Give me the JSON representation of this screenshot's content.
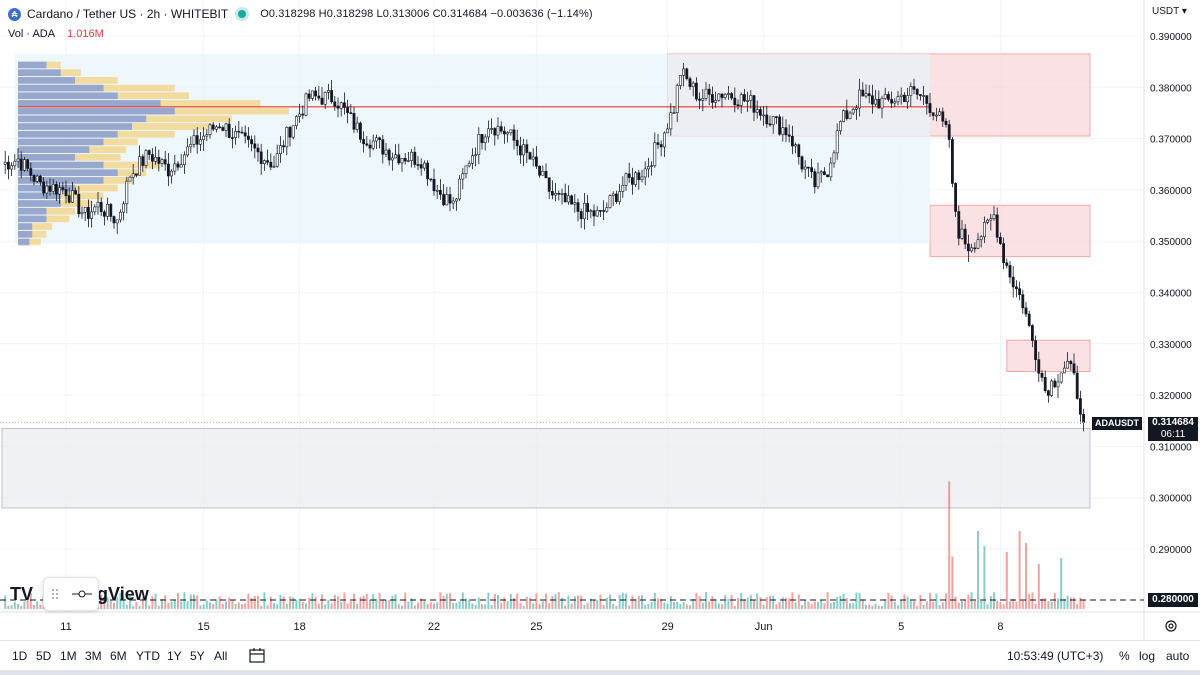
{
  "header": {
    "symbol_title": "Cardano / Tether US · 2h · WHITEBIT",
    "ohlc_text": "O0.318298 H0.318298 L0.313006 C0.314684 −0.003636 (−1.14%)",
    "vol_label": "Vol · ADA",
    "vol_value": "1.016M",
    "currency": "USDT ▾",
    "symbol_icon": "cardano-logo",
    "status_icon": "market-open-dot"
  },
  "price_tags": {
    "symbol": "ADAUSDT",
    "last_price": "0.314684",
    "countdown": "06:11",
    "dashed_price": "0.280000"
  },
  "watermark": {
    "text": "gView",
    "logo": "TV"
  },
  "timeframes": [
    "1D",
    "5D",
    "1M",
    "3M",
    "6M",
    "YTD",
    "1Y",
    "5Y",
    "All"
  ],
  "bottom": {
    "clock": "10:53:49 (UTC+3)",
    "percent": "%",
    "log": "log",
    "auto": "auto"
  },
  "colors": {
    "up": "#26a69a",
    "down": "#ef5350",
    "zone_fill": "#f9d7da",
    "zone_border": "#f28b8b",
    "range_fill": "#e7f3fb",
    "support_fill": "#eceef2",
    "poc_line": "#e53935",
    "profile_blue": "#4d7cf6",
    "profile_yellow": "#f5c451"
  },
  "chart_data": {
    "type": "candlestick",
    "title": "Cardano / Tether US · 2h · WHITEBIT",
    "y_ticks": [
      "0.390000",
      "0.380000",
      "0.370000",
      "0.360000",
      "0.350000",
      "0.340000",
      "0.330000",
      "0.320000",
      "0.310000",
      "0.300000",
      "0.290000"
    ],
    "y_tick_values": [
      0.39,
      0.38,
      0.37,
      0.36,
      0.35,
      0.34,
      0.33,
      0.32,
      0.31,
      0.3,
      0.29
    ],
    "ylim": [
      0.2775,
      0.394
    ],
    "x_ticks": [
      "11",
      "15",
      "18",
      "22",
      "25",
      "29",
      "Jun",
      "5",
      "8"
    ],
    "x_tick_index": [
      20,
      63,
      93,
      135,
      167,
      208,
      238,
      281,
      312
    ],
    "bar_count": 338,
    "poc_price": 0.3762,
    "zones": [
      {
        "type": "resistance",
        "from_index": 208,
        "to_index": 340,
        "top": 0.3865,
        "bottom": 0.3705
      },
      {
        "type": "resistance",
        "from_index": 290,
        "to_index": 340,
        "top": 0.357,
        "bottom": 0.347
      },
      {
        "type": "resistance",
        "from_index": 314,
        "to_index": 340,
        "top": 0.3307,
        "bottom": 0.3246
      },
      {
        "type": "support",
        "from_index": 0,
        "to_index": 340,
        "top": 0.3135,
        "bottom": 0.298
      },
      {
        "type": "range",
        "from_index": 4,
        "to_index": 290,
        "top": 0.3865,
        "bottom": 0.3495
      }
    ],
    "path_keypoints": [
      [
        0,
        0.365
      ],
      [
        5,
        0.366
      ],
      [
        12,
        0.361
      ],
      [
        20,
        0.36
      ],
      [
        26,
        0.355
      ],
      [
        30,
        0.357
      ],
      [
        36,
        0.354
      ],
      [
        40,
        0.363
      ],
      [
        46,
        0.367
      ],
      [
        52,
        0.364
      ],
      [
        60,
        0.369
      ],
      [
        68,
        0.373
      ],
      [
        76,
        0.369
      ],
      [
        85,
        0.365
      ],
      [
        90,
        0.372
      ],
      [
        96,
        0.378
      ],
      [
        104,
        0.378
      ],
      [
        112,
        0.371
      ],
      [
        122,
        0.367
      ],
      [
        131,
        0.366
      ],
      [
        136,
        0.36
      ],
      [
        141,
        0.357
      ],
      [
        146,
        0.366
      ],
      [
        152,
        0.373
      ],
      [
        158,
        0.371
      ],
      [
        165,
        0.366
      ],
      [
        172,
        0.359
      ],
      [
        180,
        0.356
      ],
      [
        187,
        0.355
      ],
      [
        194,
        0.361
      ],
      [
        201,
        0.364
      ],
      [
        206,
        0.37
      ],
      [
        210,
        0.376
      ],
      [
        212,
        0.383
      ],
      [
        218,
        0.378
      ],
      [
        226,
        0.379
      ],
      [
        234,
        0.377
      ],
      [
        240,
        0.374
      ],
      [
        246,
        0.371
      ],
      [
        250,
        0.365
      ],
      [
        254,
        0.361
      ],
      [
        258,
        0.364
      ],
      [
        262,
        0.373
      ],
      [
        268,
        0.378
      ],
      [
        276,
        0.377
      ],
      [
        284,
        0.379
      ],
      [
        288,
        0.378
      ],
      [
        292,
        0.375
      ],
      [
        296,
        0.37
      ],
      [
        297,
        0.36
      ],
      [
        299,
        0.352
      ],
      [
        302,
        0.349
      ],
      [
        307,
        0.352
      ],
      [
        310,
        0.355
      ],
      [
        313,
        0.347
      ],
      [
        316,
        0.342
      ],
      [
        319,
        0.338
      ],
      [
        321,
        0.333
      ],
      [
        324,
        0.326
      ],
      [
        326,
        0.321
      ],
      [
        329,
        0.323
      ],
      [
        331,
        0.325
      ],
      [
        333,
        0.326
      ],
      [
        335,
        0.323
      ],
      [
        337,
        0.318
      ],
      [
        338,
        0.3147
      ]
    ],
    "volume_spikes": [
      [
        296,
        0.85
      ],
      [
        297,
        0.35
      ],
      [
        305,
        0.52
      ],
      [
        307,
        0.42
      ],
      [
        314,
        0.38
      ],
      [
        318,
        0.52
      ],
      [
        320,
        0.44
      ],
      [
        324,
        0.3
      ],
      [
        331,
        0.34
      ]
    ],
    "volume_profile": {
      "price_rows": [
        0.385,
        0.3835,
        0.382,
        0.3805,
        0.379,
        0.3775,
        0.376,
        0.3745,
        0.373,
        0.3715,
        0.37,
        0.3685,
        0.367,
        0.3655,
        0.364,
        0.3625,
        0.361,
        0.3595,
        0.358,
        0.3565,
        0.355,
        0.3535,
        0.352,
        0.3505
      ],
      "up_fraction": [
        0.1,
        0.15,
        0.2,
        0.3,
        0.35,
        0.5,
        0.55,
        0.45,
        0.4,
        0.35,
        0.3,
        0.25,
        0.2,
        0.3,
        0.35,
        0.3,
        0.2,
        0.15,
        0.15,
        0.1,
        0.1,
        0.05,
        0.05,
        0.04
      ],
      "total_fraction": [
        0.15,
        0.22,
        0.35,
        0.55,
        0.6,
        0.85,
        0.95,
        0.75,
        0.68,
        0.55,
        0.42,
        0.38,
        0.36,
        0.5,
        0.45,
        0.4,
        0.35,
        0.3,
        0.26,
        0.2,
        0.18,
        0.12,
        0.1,
        0.08
      ]
    }
  }
}
